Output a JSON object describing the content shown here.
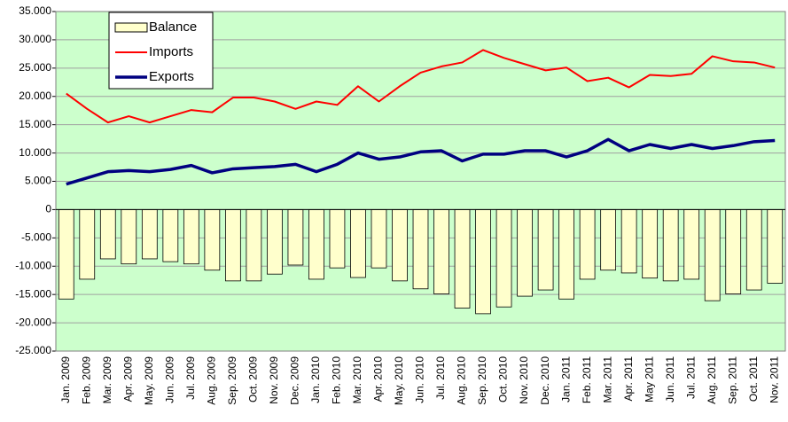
{
  "chart_data": {
    "type": "bar-line",
    "categories": [
      "Jan. 2009",
      "Feb. 2009",
      "Mar. 2009",
      "Apr. 2009",
      "May. 2009",
      "Jun. 2009",
      "Jul. 2009",
      "Aug. 2009",
      "Sep. 2009",
      "Oct. 2009",
      "Nov. 2009",
      "Dec. 2009",
      "Jan. 2010",
      "Feb. 2010",
      "Mar. 2010",
      "Apr. 2010",
      "May. 2010",
      "Jun. 2010",
      "Jul. 2010",
      "Aug. 2010",
      "Sep. 2010",
      "Oct. 2010",
      "Nov. 2010",
      "Dec. 2010",
      "Jan. 2011",
      "Feb. 2011",
      "Mar. 2011",
      "Apr. 2011",
      "May 2011",
      "Jun. 2011",
      "Jul. 2011",
      "Aug. 2011",
      "Sep. 2011",
      "Oct. 2011",
      "Nov. 2011"
    ],
    "series": [
      {
        "name": "Balance",
        "kind": "bar",
        "color": "#ffffcc",
        "values": [
          -15800,
          -12300,
          -8700,
          -9600,
          -8700,
          -9200,
          -9600,
          -10700,
          -12600,
          -12600,
          -11400,
          -9800,
          -12300,
          -10300,
          -12000,
          -10300,
          -12600,
          -14000,
          -14900,
          -17400,
          -18400,
          -17200,
          -15300,
          -14200,
          -15800,
          -12300,
          -10700,
          -11200,
          -12100,
          -12600,
          -12300,
          -16100,
          -14900,
          -14200,
          -13000
        ]
      },
      {
        "name": "Imports",
        "kind": "line",
        "color": "#ff0000",
        "values": [
          20500,
          17800,
          15400,
          16500,
          15400,
          16500,
          17600,
          17200,
          19800,
          19800,
          19100,
          17800,
          19100,
          18500,
          21800,
          19100,
          21800,
          24200,
          25300,
          26000,
          28200,
          26800,
          25700,
          24600,
          25100,
          22700,
          23300,
          21600,
          23800,
          23600,
          24000,
          27100,
          26200,
          26000,
          25100
        ]
      },
      {
        "name": "Exports",
        "kind": "line",
        "color": "#000080",
        "values": [
          4500,
          5600,
          6700,
          6900,
          6700,
          7100,
          7800,
          6500,
          7200,
          7400,
          7600,
          8000,
          6700,
          8000,
          10000,
          8900,
          9300,
          10200,
          10400,
          8600,
          9800,
          9800,
          10400,
          10400,
          9300,
          10400,
          12400,
          10400,
          11500,
          10800,
          11500,
          10800,
          11300,
          12000,
          12200
        ]
      }
    ],
    "ylim": [
      -25000,
      35000
    ],
    "yticks": [
      {
        "value": -25000,
        "label": "-25.000"
      },
      {
        "value": -20000,
        "label": "-20.000"
      },
      {
        "value": -15000,
        "label": "-15.000"
      },
      {
        "value": -10000,
        "label": "-10.000"
      },
      {
        "value": -5000,
        "label": "-5.000"
      },
      0,
      {
        "value": 5000,
        "label": "5.000"
      },
      {
        "value": 10000,
        "label": "10.000"
      },
      {
        "value": 15000,
        "label": "15.000"
      },
      {
        "value": 20000,
        "label": "20.000"
      },
      {
        "value": 25000,
        "label": "25.000"
      },
      {
        "value": 30000,
        "label": "30.000"
      },
      {
        "value": 35000,
        "label": "35.000"
      }
    ],
    "grid": true,
    "background": "#ccffcc"
  }
}
